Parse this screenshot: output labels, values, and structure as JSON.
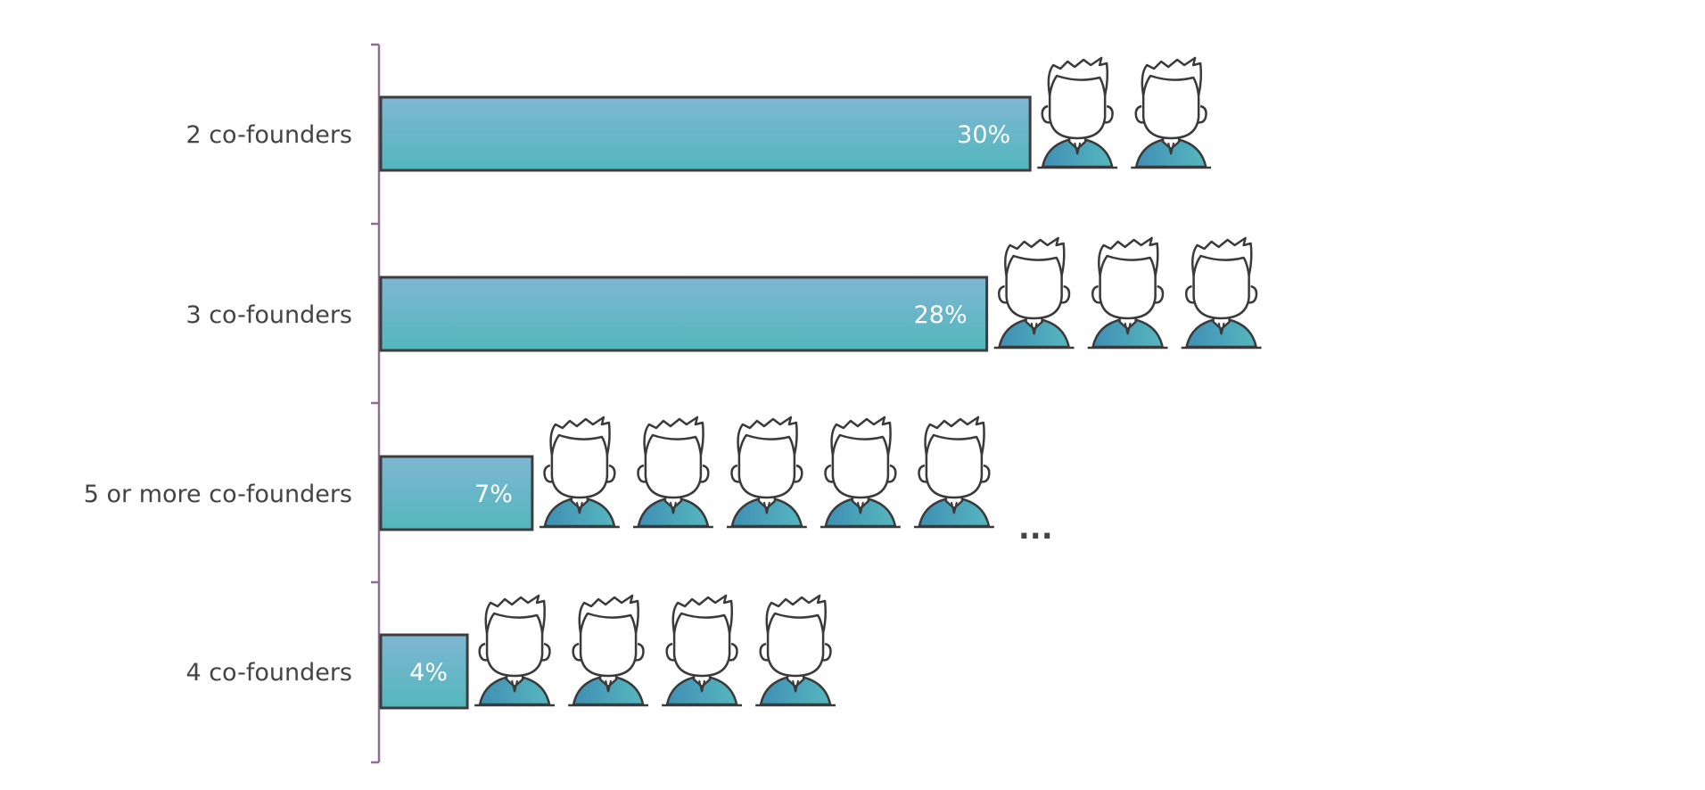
{
  "chart_data": {
    "type": "bar",
    "orientation": "horizontal",
    "categories": [
      "2 co-founders",
      "3 co-founders",
      "5 or more co-founders",
      "4 co-founders"
    ],
    "values": [
      30,
      28,
      7,
      4
    ],
    "value_labels": [
      "30%",
      "28%",
      "7%",
      "4%"
    ],
    "icon_counts": [
      2,
      3,
      5,
      4
    ],
    "icon_overflow": [
      false,
      false,
      true,
      false
    ],
    "overflow_label": "...",
    "title": "",
    "xlabel": "",
    "ylabel": "",
    "grid": false,
    "legend": "none"
  },
  "colors": {
    "bar_top": "#7fb6d3",
    "bar_bottom": "#52b7bc",
    "bar_border": "#3d3d3d",
    "axis": "#8c6f91",
    "shirt_left": "#3f8fb4",
    "shirt_right": "#56b7be",
    "line": "#3a3a3a",
    "label_text": "#444444"
  },
  "icons": {
    "person": "person-icon"
  }
}
